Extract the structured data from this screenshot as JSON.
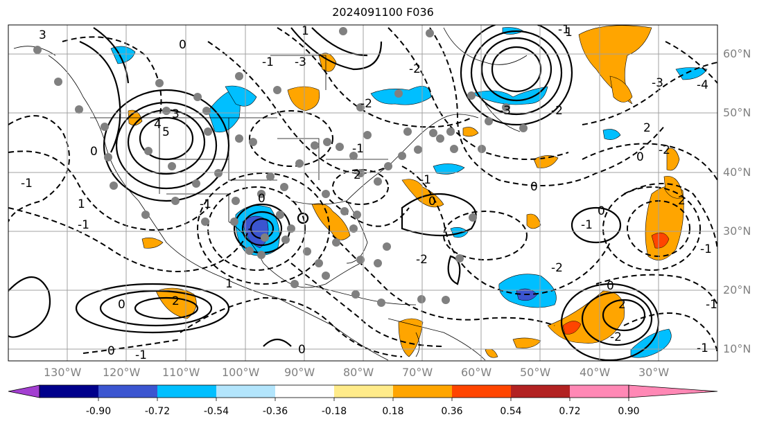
{
  "title": "2024091100 F036",
  "map": {
    "lon_ticks": [
      "130°W",
      "120°W",
      "110°W",
      "100°W",
      "90°W",
      "80°W",
      "70°W",
      "60°W",
      "50°W",
      "40°W",
      "30°W"
    ],
    "lat_ticks": [
      "60°N",
      "50°N",
      "40°N",
      "30°N",
      "20°N",
      "10°N"
    ],
    "contour_labels": [
      "3",
      "0",
      "-1",
      "1",
      "4",
      "3",
      "5",
      "0",
      "-1",
      "1",
      "-1",
      "-3",
      "-2",
      "-2",
      "-1",
      "2",
      "-1",
      "0",
      "-2",
      "0",
      "-1",
      "0",
      "2",
      "1",
      "0",
      "-1",
      "-3",
      "-2",
      "-1",
      "2",
      "-4",
      "-3",
      "-2",
      "0",
      "0",
      "2",
      "-2",
      "-1",
      "-1",
      "0",
      "0",
      "-1",
      "-1",
      "2",
      "-2",
      "1",
      "0"
    ]
  },
  "colorbar": {
    "tick_labels": [
      "-0.90",
      "-0.72",
      "-0.54",
      "-0.36",
      "-0.18",
      "0.18",
      "0.36",
      "0.54",
      "0.72",
      "0.90"
    ],
    "colors": [
      "#a33fd1",
      "#00008b",
      "#3b55d0",
      "#00bfff",
      "#b3e5fc",
      "#ffffff",
      "#ffeb8a",
      "#ffa500",
      "#ff4500",
      "#b22222",
      "#ff88b5"
    ]
  }
}
